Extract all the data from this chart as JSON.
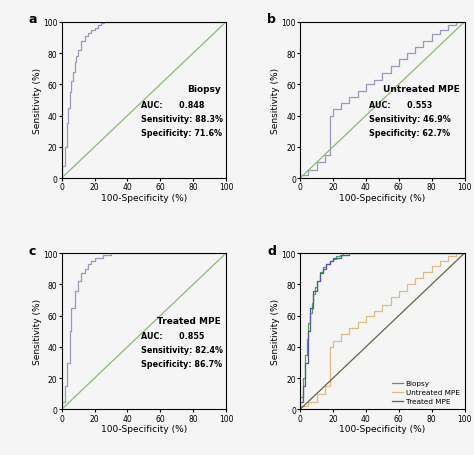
{
  "panel_a": {
    "label": "a",
    "title": "Biopsy",
    "auc": "0.848",
    "sensitivity": "88.3%",
    "specificity": "71.6%",
    "roc_color": "#9999bb",
    "diag_color": "#88bb77",
    "step_x": [
      0,
      0,
      2,
      2,
      3,
      3,
      4,
      4,
      5,
      5,
      6,
      6,
      7,
      7,
      8,
      8,
      9,
      9,
      10,
      10,
      12,
      12,
      14,
      14,
      16,
      16,
      18,
      18,
      20,
      20,
      22,
      22,
      24,
      24,
      26,
      26,
      28,
      28,
      30,
      30,
      32,
      32,
      100
    ],
    "step_y": [
      0,
      8,
      8,
      20,
      20,
      35,
      35,
      45,
      45,
      55,
      55,
      62,
      62,
      68,
      68,
      74,
      74,
      78,
      78,
      82,
      82,
      88,
      88,
      91,
      91,
      93,
      93,
      95,
      95,
      96,
      96,
      98,
      98,
      99,
      99,
      100,
      100,
      100,
      100,
      100,
      100,
      100,
      100
    ]
  },
  "panel_b": {
    "label": "b",
    "title": "Untreated MPE",
    "auc": "0.553",
    "sensitivity": "46.9%",
    "specificity": "62.7%",
    "roc_color": "#9999bb",
    "diag_color": "#88bb77",
    "step_x": [
      0,
      0,
      5,
      5,
      10,
      10,
      15,
      15,
      18,
      18,
      20,
      20,
      25,
      25,
      30,
      30,
      35,
      35,
      40,
      40,
      45,
      45,
      50,
      50,
      55,
      55,
      60,
      60,
      65,
      65,
      70,
      70,
      75,
      75,
      80,
      80,
      85,
      85,
      90,
      90,
      95,
      95,
      100,
      100
    ],
    "step_y": [
      0,
      2,
      2,
      5,
      5,
      10,
      10,
      15,
      15,
      40,
      40,
      44,
      44,
      48,
      48,
      52,
      52,
      56,
      56,
      60,
      60,
      63,
      63,
      67,
      67,
      72,
      72,
      76,
      76,
      80,
      80,
      84,
      84,
      88,
      88,
      92,
      92,
      95,
      95,
      98,
      98,
      100,
      100,
      100
    ]
  },
  "panel_c": {
    "label": "c",
    "title": "Treated MPE",
    "auc": "0.855",
    "sensitivity": "82.4%",
    "specificity": "86.7%",
    "roc_color": "#9999bb",
    "diag_color": "#88bb77",
    "step_x": [
      0,
      0,
      2,
      2,
      3,
      3,
      5,
      5,
      6,
      6,
      8,
      8,
      10,
      10,
      12,
      12,
      14,
      14,
      16,
      16,
      18,
      18,
      20,
      20,
      25,
      25,
      30,
      30,
      60,
      60,
      100
    ],
    "step_y": [
      0,
      5,
      5,
      15,
      15,
      30,
      30,
      50,
      50,
      65,
      65,
      76,
      76,
      82,
      82,
      87,
      87,
      90,
      90,
      93,
      93,
      95,
      95,
      97,
      97,
      99,
      99,
      100,
      100,
      100,
      100
    ]
  },
  "panel_d": {
    "label": "d",
    "biopsy_color": "#44aa44",
    "untreated_color": "#ddbb88",
    "treated_color": "#5555aa",
    "diag_color": "#666644",
    "legend_labels": [
      "Biopsy",
      "Untreated MPE",
      "Treated MPE"
    ],
    "biopsy_x": [
      0,
      0,
      2,
      2,
      3,
      3,
      4,
      4,
      5,
      5,
      6,
      6,
      7,
      7,
      8,
      8,
      9,
      9,
      10,
      10,
      12,
      12,
      14,
      14,
      16,
      16,
      18,
      18,
      20,
      20,
      22,
      22,
      24,
      24,
      26,
      26,
      28,
      28,
      30,
      30,
      32,
      32,
      60,
      60,
      100
    ],
    "biopsy_y": [
      0,
      8,
      8,
      20,
      20,
      35,
      35,
      45,
      45,
      55,
      55,
      62,
      62,
      68,
      68,
      74,
      74,
      78,
      78,
      82,
      82,
      88,
      88,
      91,
      91,
      93,
      93,
      95,
      95,
      96,
      96,
      98,
      98,
      99,
      99,
      100,
      100,
      100,
      100,
      100,
      100,
      100,
      100,
      100,
      100
    ],
    "untreated_x": [
      0,
      0,
      5,
      5,
      10,
      10,
      15,
      15,
      18,
      18,
      20,
      20,
      25,
      25,
      30,
      30,
      35,
      35,
      40,
      40,
      45,
      45,
      50,
      50,
      55,
      55,
      60,
      60,
      65,
      65,
      70,
      70,
      75,
      75,
      80,
      80,
      85,
      85,
      90,
      90,
      95,
      95,
      100,
      100
    ],
    "untreated_y": [
      0,
      2,
      2,
      5,
      5,
      10,
      10,
      15,
      15,
      40,
      40,
      44,
      44,
      48,
      48,
      52,
      52,
      56,
      56,
      60,
      60,
      63,
      63,
      67,
      67,
      72,
      72,
      76,
      76,
      80,
      80,
      84,
      84,
      88,
      88,
      92,
      92,
      95,
      95,
      98,
      98,
      100,
      100,
      100
    ],
    "treated_x": [
      0,
      0,
      2,
      2,
      3,
      3,
      5,
      5,
      6,
      6,
      8,
      8,
      10,
      10,
      12,
      12,
      14,
      14,
      16,
      16,
      18,
      18,
      20,
      20,
      25,
      25,
      30,
      30,
      60,
      60,
      100
    ],
    "treated_y": [
      0,
      5,
      5,
      15,
      15,
      30,
      30,
      50,
      50,
      65,
      65,
      76,
      76,
      82,
      82,
      87,
      87,
      90,
      90,
      93,
      93,
      95,
      95,
      97,
      97,
      99,
      99,
      100,
      100,
      100,
      100
    ]
  },
  "xlabel": "100-Specificity (%)",
  "ylabel": "Sensitivity (%)",
  "xlim": [
    0,
    100
  ],
  "ylim": [
    0,
    100
  ],
  "xticks": [
    0,
    20,
    40,
    60,
    80,
    100
  ],
  "yticks": [
    0,
    20,
    40,
    60,
    80,
    100
  ],
  "tick_labels": [
    "0",
    "20",
    "40",
    "60",
    "80",
    "100"
  ],
  "bg_color": "#f5f5f5",
  "text_color": "#222222"
}
